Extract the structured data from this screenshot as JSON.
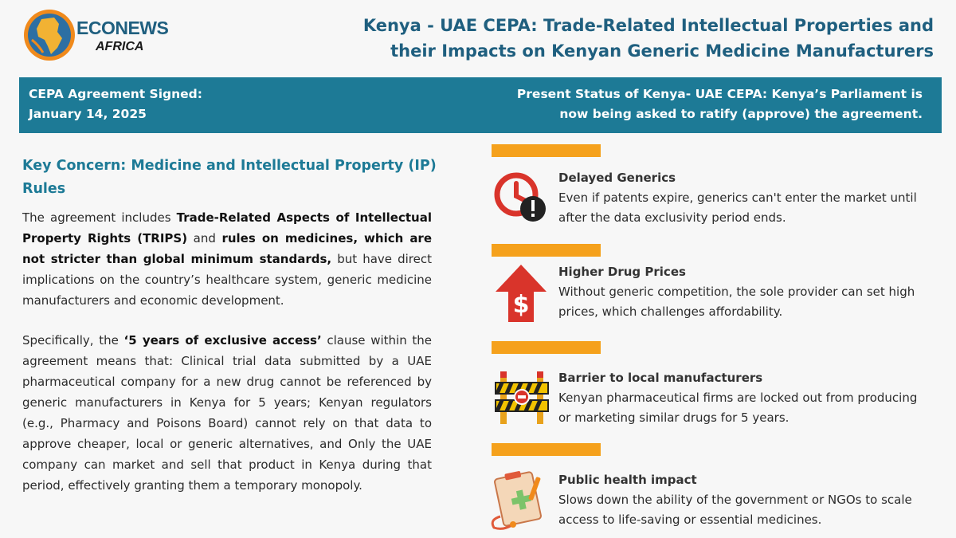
{
  "logo": {
    "line1": "ECONEWS",
    "line2": "AFRICA"
  },
  "title": "Kenya - UAE CEPA: Trade-Related Intellectual Properties and their Impacts on Kenyan Generic Medicine Manufacturers",
  "banner": {
    "signed_label": "CEPA Agreement Signed:",
    "signed_date": "January 14, 2025",
    "status_line1": "Present Status of Kenya- UAE CEPA: Kenya’s Parliament is",
    "status_line2": "now being asked to ratify (approve) the agreement."
  },
  "concern_heading": "Key Concern: Medicine and Intellectual Property (IP) Rules",
  "paragraph1": {
    "t1": "The agreement includes ",
    "b1": "Trade-Related Aspects of Intellectual Property Rights (TRIPS)",
    "t2": " and ",
    "b2": "rules on medicines, which are not stricter than global minimum standards,",
    "t3": " but have direct implications on the country’s healthcare system, generic medicine manufacturers and economic development."
  },
  "paragraph2": {
    "t1": "Specifically, the ",
    "b1": "‘5 years of exclusive access’",
    "t2": " clause within the agreement means that: Clinical trial data submitted by a UAE pharmaceutical company for a new drug cannot be referenced by generic manufacturers in Kenya for 5 years; Kenyan regulators (e.g., Pharmacy and Poisons Board) cannot rely on that data to approve cheaper, local or generic alternatives, and Only the UAE company can market and sell that product in Kenya during that period, effectively granting them a temporary monopoly."
  },
  "impacts": [
    {
      "title": "Delayed Generics",
      "body": "Even if patents expire, generics can't enter the market until after the data exclusivity period ends.",
      "icon": "clock-warning-icon"
    },
    {
      "title": "Higher Drug Prices",
      "body": "Without generic competition, the sole provider can set high prices, which challenges affordability.",
      "icon": "price-up-icon"
    },
    {
      "title": "Barrier to local manufacturers",
      "body": "Kenyan pharmaceutical firms are locked out from producing or marketing similar drugs for 5 years.",
      "icon": "barrier-icon"
    },
    {
      "title": "Public health impact",
      "body": "Slows down the ability of the government or NGOs to scale access to life-saving or essential medicines.",
      "icon": "medical-clipboard-icon"
    }
  ],
  "colors": {
    "brand_blue": "#1d7a96",
    "title_blue": "#1f5f7f",
    "accent_orange": "#f5a11c",
    "icon_red": "#d9342b"
  }
}
